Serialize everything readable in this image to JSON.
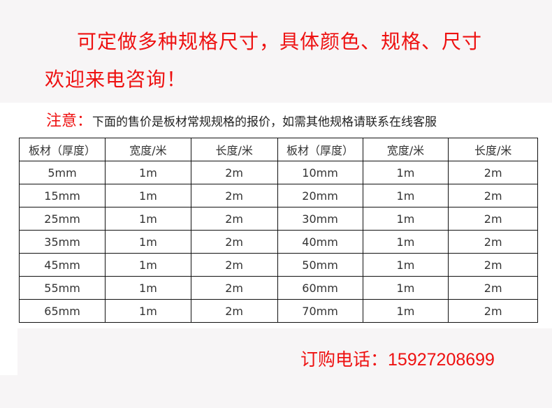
{
  "header": {
    "line1": "可定做多种规格尺寸，具体颜色、规格、尺寸",
    "line2": "欢迎来电咨询！"
  },
  "note": {
    "label": "注意：",
    "text": "下面的售价是板材常规规格的报价，如需其他规格请联系在线客服"
  },
  "table": {
    "headers": [
      "板材（厚度）",
      "宽度/米",
      "长度/米",
      "板材（厚度）",
      "宽度/米",
      "长度/米"
    ],
    "rows": [
      [
        "5mm",
        "1m",
        "2m",
        "10mm",
        "1m",
        "2m"
      ],
      [
        "15mm",
        "1m",
        "2m",
        "20mm",
        "1m",
        "2m"
      ],
      [
        "25mm",
        "1m",
        "2m",
        "30mm",
        "1m",
        "2m"
      ],
      [
        "35mm",
        "1m",
        "2m",
        "40mm",
        "1m",
        "2m"
      ],
      [
        "45mm",
        "1m",
        "2m",
        "50mm",
        "1m",
        "2m"
      ],
      [
        "55mm",
        "1m",
        "2m",
        "60mm",
        "1m",
        "2m"
      ],
      [
        "65mm",
        "1m",
        "2m",
        "70mm",
        "1m",
        "2m"
      ]
    ]
  },
  "contact": {
    "label": "订购电话：",
    "phone": "15927208699"
  },
  "colors": {
    "accent": "#ee1111",
    "background": "#f7f5f6"
  }
}
